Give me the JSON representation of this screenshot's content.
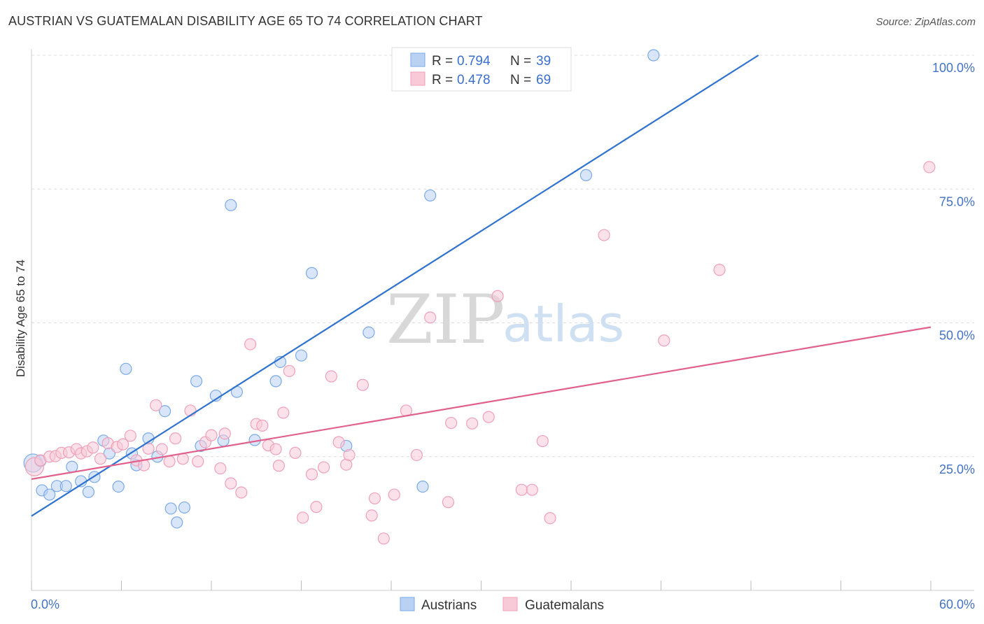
{
  "chart_data": {
    "type": "scatter",
    "title": "AUSTRIAN VS GUATEMALAN DISABILITY AGE 65 TO 74 CORRELATION CHART",
    "source": "Source: ZipAtlas.com",
    "xlabel": "",
    "ylabel": "Disability Age 65 to 74",
    "xlim": [
      0,
      60
    ],
    "ylim": [
      0,
      100
    ],
    "x_tick_labels": [
      "0.0%",
      "60.0%"
    ],
    "y_ticks": [
      25,
      50,
      75,
      100
    ],
    "y_tick_labels": [
      "25.0%",
      "50.0%",
      "75.0%",
      "100.0%"
    ],
    "grid": true,
    "watermark": {
      "zip": "ZIP",
      "atlas": "atlas"
    },
    "legend": {
      "rows": [
        {
          "r_label": "R = ",
          "r_value": "0.794",
          "n_label": "N = ",
          "n_value": "39"
        },
        {
          "r_label": "R = ",
          "r_value": "0.478",
          "n_label": "N = ",
          "n_value": "69"
        }
      ]
    },
    "series": [
      {
        "name": "Austrians",
        "color": "#7aaae8",
        "fill": "#b9d2f4",
        "line_color": "#2f72d0",
        "trend": {
          "x": [
            0,
            48.5
          ],
          "y": [
            13.9,
            100
          ]
        },
        "points": [
          [
            0.1,
            23.8
          ],
          [
            0.6,
            24.2
          ],
          [
            0.7,
            18.7
          ],
          [
            1.2,
            17.9
          ],
          [
            1.7,
            19.5
          ],
          [
            2.3,
            19.5
          ],
          [
            2.7,
            23.1
          ],
          [
            3.3,
            20.4
          ],
          [
            3.8,
            18.4
          ],
          [
            4.2,
            21.2
          ],
          [
            4.8,
            28.0
          ],
          [
            5.2,
            25.6
          ],
          [
            5.8,
            19.4
          ],
          [
            6.3,
            41.4
          ],
          [
            6.7,
            25.6
          ],
          [
            7.0,
            23.4
          ],
          [
            7.8,
            28.4
          ],
          [
            8.4,
            25.0
          ],
          [
            8.9,
            33.5
          ],
          [
            9.3,
            15.3
          ],
          [
            9.7,
            12.7
          ],
          [
            10.2,
            15.5
          ],
          [
            11.0,
            39.1
          ],
          [
            11.3,
            27.0
          ],
          [
            12.3,
            36.4
          ],
          [
            12.8,
            28.0
          ],
          [
            13.3,
            72.0
          ],
          [
            13.7,
            37.1
          ],
          [
            14.9,
            28.1
          ],
          [
            16.3,
            39.1
          ],
          [
            16.6,
            42.7
          ],
          [
            18.0,
            43.9
          ],
          [
            18.7,
            59.3
          ],
          [
            21.0,
            27.0
          ],
          [
            22.5,
            48.2
          ],
          [
            26.1,
            19.4
          ],
          [
            26.6,
            73.8
          ],
          [
            37.0,
            77.6
          ],
          [
            41.5,
            100
          ]
        ]
      },
      {
        "name": "Guatemalans",
        "color": "#f0a0b8",
        "fill": "#f8cad8",
        "line_color": "#e2608c",
        "trend": {
          "x": [
            0,
            60
          ],
          "y": [
            20.8,
            49.2
          ]
        },
        "points": [
          [
            0.2,
            23.1
          ],
          [
            0.6,
            24.3
          ],
          [
            1.2,
            25.0
          ],
          [
            1.6,
            25.1
          ],
          [
            2.0,
            25.7
          ],
          [
            2.5,
            25.8
          ],
          [
            3.0,
            26.4
          ],
          [
            3.3,
            25.6
          ],
          [
            3.7,
            26.0
          ],
          [
            4.1,
            26.7
          ],
          [
            4.6,
            24.6
          ],
          [
            5.1,
            27.5
          ],
          [
            5.7,
            26.8
          ],
          [
            6.1,
            27.3
          ],
          [
            6.6,
            28.9
          ],
          [
            7.0,
            24.3
          ],
          [
            7.5,
            23.4
          ],
          [
            7.8,
            26.5
          ],
          [
            8.3,
            34.6
          ],
          [
            8.7,
            26.4
          ],
          [
            9.2,
            24.1
          ],
          [
            9.6,
            28.4
          ],
          [
            10.1,
            24.6
          ],
          [
            10.6,
            33.6
          ],
          [
            11.1,
            24.1
          ],
          [
            11.6,
            27.7
          ],
          [
            12.0,
            29.0
          ],
          [
            12.6,
            22.8
          ],
          [
            12.9,
            29.3
          ],
          [
            13.3,
            20.0
          ],
          [
            14.0,
            18.3
          ],
          [
            14.6,
            46.0
          ],
          [
            15.0,
            31.1
          ],
          [
            15.4,
            30.8
          ],
          [
            15.8,
            27.1
          ],
          [
            16.3,
            26.4
          ],
          [
            16.5,
            23.3
          ],
          [
            16.8,
            33.2
          ],
          [
            17.2,
            41.0
          ],
          [
            17.6,
            25.7
          ],
          [
            18.1,
            13.6
          ],
          [
            18.7,
            21.7
          ],
          [
            19.0,
            15.6
          ],
          [
            19.5,
            23.0
          ],
          [
            20.0,
            40.0
          ],
          [
            20.5,
            27.7
          ],
          [
            21.0,
            23.5
          ],
          [
            21.2,
            25.3
          ],
          [
            22.1,
            38.4
          ],
          [
            22.7,
            14.0
          ],
          [
            22.9,
            17.2
          ],
          [
            23.5,
            9.7
          ],
          [
            24.2,
            17.9
          ],
          [
            25.0,
            33.6
          ],
          [
            25.7,
            25.3
          ],
          [
            26.6,
            51.0
          ],
          [
            27.8,
            16.5
          ],
          [
            28.0,
            31.3
          ],
          [
            29.4,
            31.2
          ],
          [
            30.5,
            32.4
          ],
          [
            31.1,
            55.0
          ],
          [
            32.7,
            18.8
          ],
          [
            33.4,
            18.8
          ],
          [
            34.1,
            27.9
          ],
          [
            34.6,
            13.5
          ],
          [
            38.2,
            66.4
          ],
          [
            42.2,
            46.7
          ],
          [
            45.9,
            59.9
          ],
          [
            59.9,
            79.1
          ]
        ]
      }
    ]
  }
}
